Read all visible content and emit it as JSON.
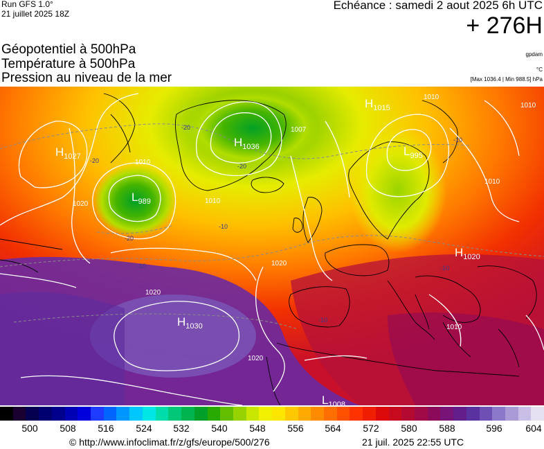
{
  "header": {
    "run": "Run GFS 1.0°",
    "run_date": "21 juillet 2025 18Z",
    "echeance": "Echéance : samedi 2 aout 2025 6h UTC",
    "hours": "+ 276H",
    "layers": [
      "Géopotentiel à 500hPa",
      "Température à 500hPa",
      "Pression au niveau de la mer"
    ],
    "unit_geopot": "gpdam",
    "unit_temp": "°C",
    "max_min": "[Max 1036.4 | Min 988.5] hPa"
  },
  "map": {
    "pressure_centers": [
      {
        "kind": "H",
        "value": "1027",
        "name": "high-1027"
      },
      {
        "kind": "H",
        "value": "1036",
        "name": "high-1036"
      },
      {
        "kind": "H",
        "value": "1015",
        "name": "high-1015"
      },
      {
        "kind": "H",
        "value": "1020",
        "name": "high-1020"
      },
      {
        "kind": "H",
        "value": "1030",
        "name": "high-1030"
      },
      {
        "kind": "L",
        "value": "989",
        "name": "low-989"
      },
      {
        "kind": "L",
        "value": "995",
        "name": "low-995"
      },
      {
        "kind": "L",
        "value": "1008",
        "name": "low-1008"
      }
    ],
    "isobar_labels": [
      "1020",
      "1010",
      "1007",
      "1010",
      "1010",
      "1020",
      "1010",
      "1020",
      "1020",
      "1010",
      "1010"
    ],
    "isotherm_labels": [
      "-20",
      "-20",
      "-20",
      "-20",
      "-10",
      "-10",
      "-10",
      "-10",
      "-10"
    ]
  },
  "legend": {
    "ticks": [
      "500",
      "508",
      "516",
      "524",
      "532",
      "540",
      "548",
      "556",
      "564",
      "572",
      "580",
      "588",
      "596",
      "604"
    ],
    "colors": [
      "#000000",
      "#1a0030",
      "#060050",
      "#000070",
      "#00008c",
      "#0000b4",
      "#0000dc",
      "#1e3cff",
      "#0064ff",
      "#0096ff",
      "#00c8ff",
      "#00e6e6",
      "#00dcaa",
      "#00c878",
      "#00b450",
      "#00a028",
      "#28aa00",
      "#64be00",
      "#96d200",
      "#c8e600",
      "#f0f000",
      "#ffe600",
      "#ffc800",
      "#ffaa00",
      "#ff8c00",
      "#ff6e00",
      "#ff5000",
      "#ff3200",
      "#f01e00",
      "#dc0a0a",
      "#c80a1e",
      "#b40a32",
      "#a00a46",
      "#8c0a5a",
      "#781478",
      "#641e8c",
      "#5a32a0",
      "#6e50b4",
      "#8c78c8",
      "#aa9bd7",
      "#c8bee6",
      "#e6e1f0"
    ]
  },
  "footer": {
    "credit": "© http://www.infoclimat.fr/z/gfs/europe/500/276",
    "stamp": "21 juil. 2025 22:55 UTC"
  }
}
